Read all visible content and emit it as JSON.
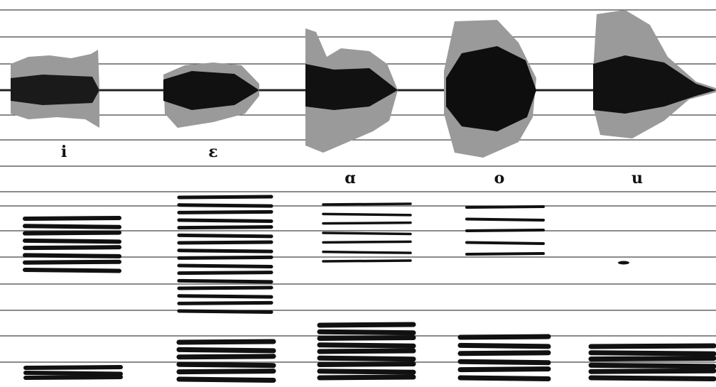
{
  "vowels": {
    "labels": [
      "i",
      "ɛ",
      "ɑ",
      "o",
      "u"
    ]
  }
}
